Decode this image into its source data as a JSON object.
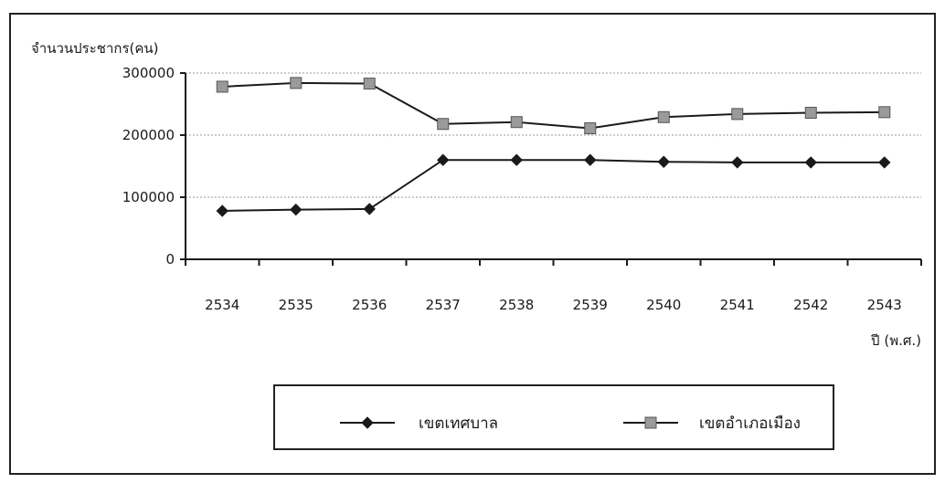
{
  "chart_data": {
    "type": "line",
    "ylabel": "จำนวนประชากร(คน)",
    "xlabel": "ปี (พ.ศ.)",
    "categories": [
      "2534",
      "2535",
      "2536",
      "2537",
      "2538",
      "2539",
      "2540",
      "2541",
      "2542",
      "2543"
    ],
    "ylim": [
      0,
      300000
    ],
    "yticks": [
      "0",
      "100000",
      "200000",
      "300000"
    ],
    "grid": true,
    "legend_position": "bottom",
    "series": [
      {
        "name": "เขตเทศบาล",
        "marker": "diamond",
        "color": "#1a1a1a",
        "values": [
          78000,
          80000,
          81000,
          160000,
          160000,
          160000,
          157000,
          156000,
          156000,
          156000
        ]
      },
      {
        "name": "เขตอำเภอเมือง",
        "marker": "square",
        "color": "#1a1a1a",
        "marker_color": "#9a9a9a",
        "values": [
          278000,
          284000,
          283000,
          218000,
          221000,
          211000,
          229000,
          234000,
          236000,
          237000
        ]
      }
    ]
  }
}
